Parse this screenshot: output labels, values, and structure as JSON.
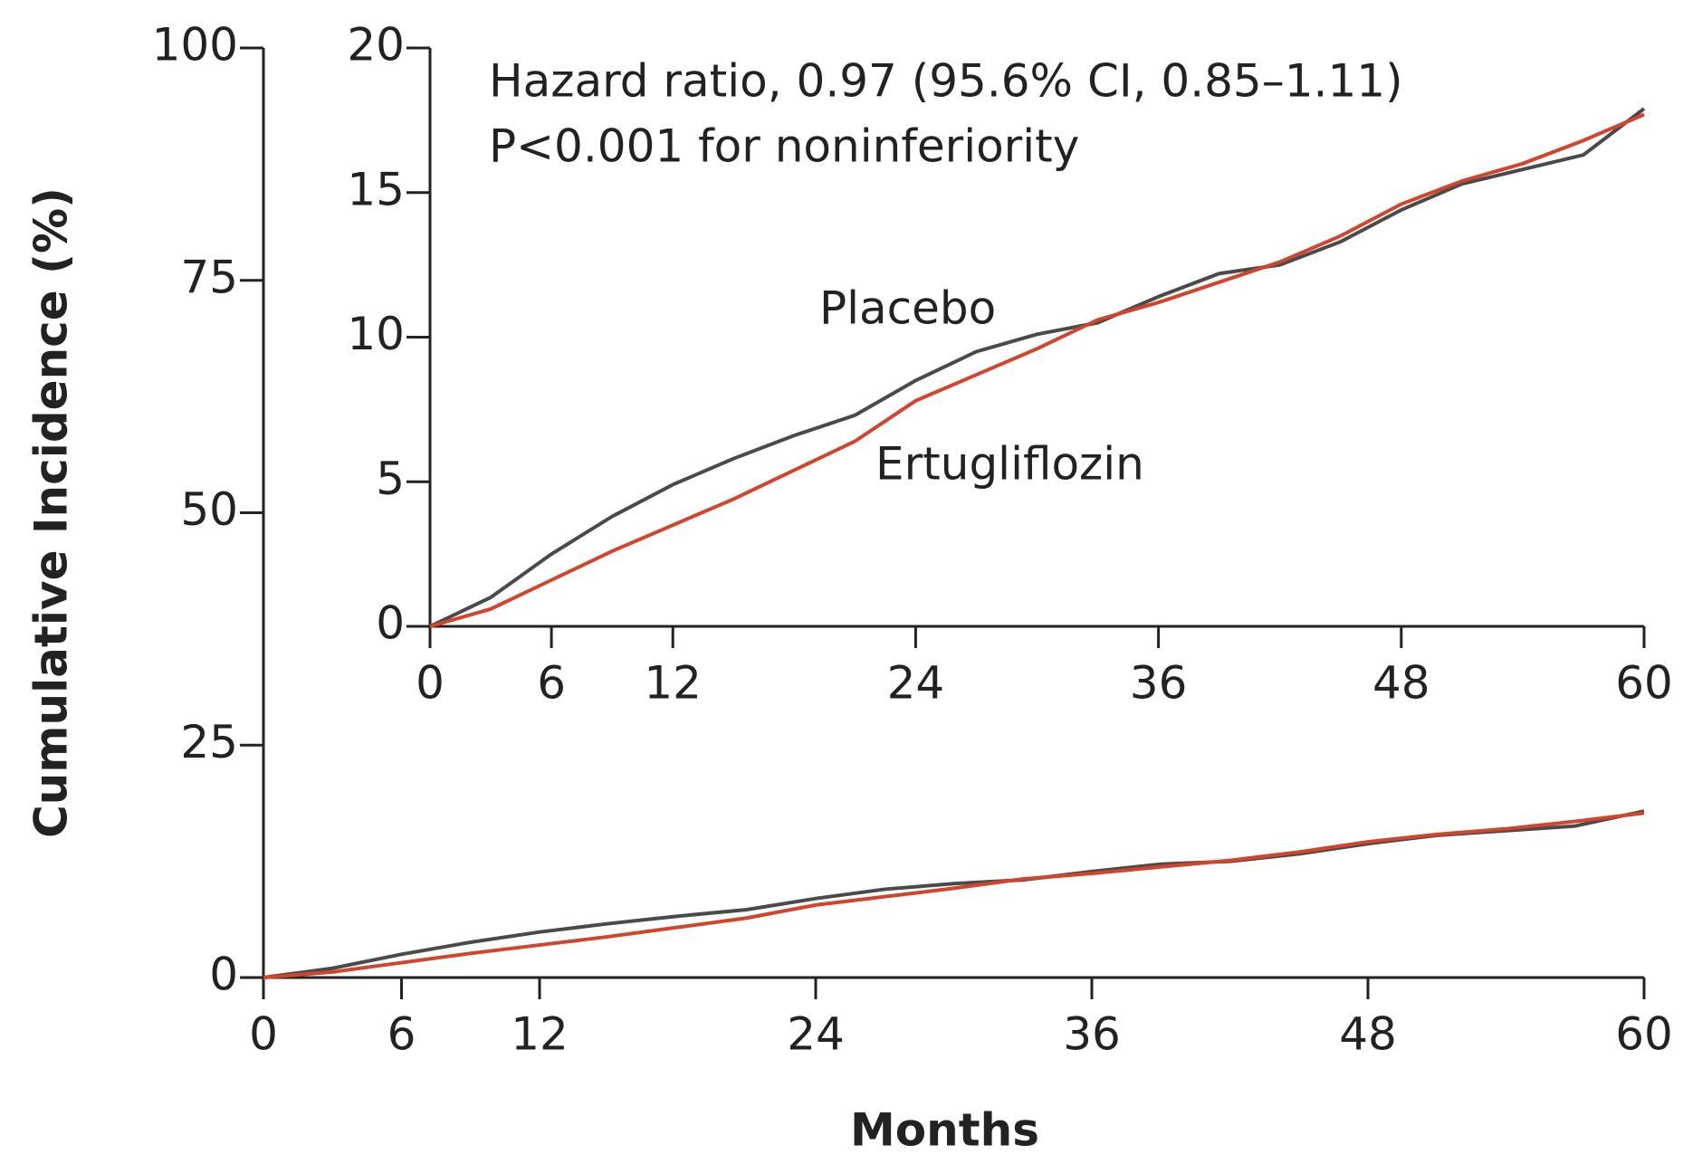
{
  "chart_data": [
    {
      "type": "line",
      "xlabel": "Months",
      "ylabel": "Cumulative Incidence (%)",
      "xlim": [
        0,
        60
      ],
      "xticks": [
        0,
        6,
        12,
        24,
        36,
        48,
        60
      ],
      "ylim": [
        0,
        100
      ],
      "yticks": [
        0,
        25,
        50,
        75,
        100
      ],
      "x": [
        0,
        3,
        6,
        9,
        12,
        15,
        18,
        21,
        24,
        27,
        30,
        33,
        36,
        39,
        42,
        45,
        48,
        51,
        54,
        57,
        60
      ],
      "series": [
        {
          "color": "#4a4a4a",
          "values": [
            0,
            1.0,
            2.5,
            3.8,
            4.9,
            5.8,
            6.6,
            7.3,
            8.5,
            9.5,
            10.1,
            10.5,
            11.4,
            12.2,
            12.5,
            13.3,
            14.4,
            15.3,
            15.8,
            16.3,
            17.9
          ]
        },
        {
          "color": "#d2452c",
          "values": [
            0,
            0.6,
            1.6,
            2.6,
            3.5,
            4.4,
            5.4,
            6.4,
            7.8,
            8.7,
            9.6,
            10.6,
            11.2,
            11.9,
            12.6,
            13.5,
            14.6,
            15.4,
            16.0,
            16.8,
            17.7
          ]
        }
      ]
    },
    {
      "type": "line",
      "xlim": [
        0,
        60
      ],
      "xticks": [
        0,
        6,
        12,
        24,
        36,
        48,
        60
      ],
      "ylim": [
        0,
        20
      ],
      "yticks": [
        0,
        5,
        10,
        15,
        20
      ],
      "annotations": [
        "Hazard ratio, 0.97 (95.6% CI, 0.85–1.11)",
        "P<0.001 for noninferiority"
      ],
      "x": [
        0,
        3,
        6,
        9,
        12,
        15,
        18,
        21,
        24,
        27,
        30,
        33,
        36,
        39,
        42,
        45,
        48,
        51,
        54,
        57,
        60
      ],
      "series": [
        {
          "name": "Placebo",
          "color": "#4a4a4a",
          "values": [
            0,
            1.0,
            2.5,
            3.8,
            4.9,
            5.8,
            6.6,
            7.3,
            8.5,
            9.5,
            10.1,
            10.5,
            11.4,
            12.2,
            12.5,
            13.3,
            14.4,
            15.3,
            15.8,
            16.3,
            17.9
          ]
        },
        {
          "name": "Ertugliflozin",
          "color": "#d2452c",
          "values": [
            0,
            0.6,
            1.6,
            2.6,
            3.5,
            4.4,
            5.4,
            6.4,
            7.8,
            8.7,
            9.6,
            10.6,
            11.2,
            11.9,
            12.6,
            13.5,
            14.6,
            15.4,
            16.0,
            16.8,
            17.7
          ]
        }
      ]
    }
  ]
}
